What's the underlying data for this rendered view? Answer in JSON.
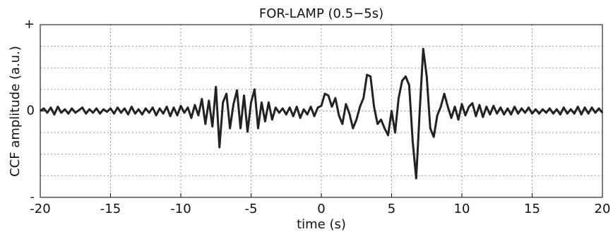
{
  "chart_data": {
    "type": "line",
    "title": "FOR-LAMP (0.5−5s)",
    "x_label": "time (s)",
    "y_label": "CCF amplitude (a.u.)",
    "color": "#222222",
    "grid": true,
    "xlim": [
      -20,
      20
    ],
    "xticks": [
      -20,
      -15,
      -10,
      -5,
      0,
      5,
      10,
      15,
      20
    ],
    "ylim": [
      -1,
      1
    ],
    "yticks": [
      {
        "value": -1,
        "label": "-"
      },
      0,
      {
        "value": 1,
        "label": "+"
      }
    ],
    "yminorticks": [
      -0.75,
      -0.5,
      -0.25,
      0.25,
      0.5,
      0.75
    ],
    "x": [
      -20,
      -19.75,
      -19.5,
      -19.25,
      -19,
      -18.75,
      -18.5,
      -18.25,
      -18,
      -17.75,
      -17.5,
      -17.25,
      -17,
      -16.75,
      -16.5,
      -16.25,
      -16,
      -15.75,
      -15.5,
      -15.25,
      -15,
      -14.75,
      -14.5,
      -14.25,
      -14,
      -13.75,
      -13.5,
      -13.25,
      -13,
      -12.75,
      -12.5,
      -12.25,
      -12,
      -11.75,
      -11.5,
      -11.25,
      -11,
      -10.75,
      -10.5,
      -10.25,
      -10,
      -9.75,
      -9.5,
      -9.25,
      -9,
      -8.75,
      -8.5,
      -8.25,
      -8,
      -7.75,
      -7.5,
      -7.25,
      -7,
      -6.75,
      -6.5,
      -6.25,
      -6,
      -5.75,
      -5.5,
      -5.25,
      -5,
      -4.75,
      -4.5,
      -4.25,
      -4,
      -3.75,
      -3.5,
      -3.25,
      -3,
      -2.75,
      -2.5,
      -2.25,
      -2,
      -1.75,
      -1.5,
      -1.25,
      -1,
      -0.75,
      -0.5,
      -0.25,
      0,
      0.25,
      0.5,
      0.75,
      1,
      1.25,
      1.5,
      1.75,
      2,
      2.25,
      2.5,
      2.75,
      3,
      3.25,
      3.5,
      3.75,
      4,
      4.25,
      4.5,
      4.75,
      5,
      5.25,
      5.5,
      5.75,
      6,
      6.25,
      6.5,
      6.75,
      7,
      7.25,
      7.5,
      7.75,
      8,
      8.25,
      8.5,
      8.75,
      9,
      9.25,
      9.5,
      9.75,
      10,
      10.25,
      10.5,
      10.75,
      11,
      11.25,
      11.5,
      11.75,
      12,
      12.25,
      12.5,
      12.75,
      13,
      13.25,
      13.5,
      13.75,
      14,
      14.25,
      14.5,
      14.75,
      15,
      15.25,
      15.5,
      15.75,
      16,
      16.25,
      16.5,
      16.75,
      17,
      17.25,
      17.5,
      17.75,
      18,
      18.25,
      18.5,
      18.75,
      19,
      19.25,
      19.5,
      19.75,
      20
    ],
    "values": [
      0,
      0.03,
      -0.02,
      0.04,
      -0.04,
      0.05,
      -0.02,
      0.02,
      -0.03,
      0.03,
      -0.02,
      0.01,
      0.04,
      -0.03,
      0.02,
      -0.02,
      0.03,
      -0.03,
      0.02,
      -0.01,
      0.03,
      -0.03,
      0.04,
      -0.02,
      0.03,
      -0.04,
      0.05,
      -0.03,
      0.02,
      -0.04,
      0.03,
      -0.02,
      0.04,
      -0.05,
      0.03,
      -0.03,
      0.05,
      -0.06,
      0.04,
      -0.05,
      0.06,
      -0.02,
      0.04,
      -0.08,
      0.07,
      -0.05,
      0.14,
      -0.15,
      0.12,
      -0.18,
      0.28,
      -0.42,
      0.1,
      0.2,
      -0.2,
      0.08,
      0.24,
      -0.2,
      0.18,
      -0.24,
      0.1,
      0.25,
      -0.2,
      0.1,
      -0.12,
      0.1,
      -0.1,
      0.04,
      -0.02,
      0.03,
      -0.04,
      0.04,
      -0.06,
      0.05,
      -0.08,
      0.02,
      -0.04,
      0.05,
      -0.06,
      0.04,
      0.06,
      0.2,
      0.18,
      0.05,
      0.15,
      -0.05,
      -0.15,
      0.08,
      -0.03,
      -0.2,
      -0.1,
      0.05,
      0.15,
      0.42,
      0.4,
      0.05,
      -0.15,
      -0.1,
      -0.2,
      -0.28,
      0,
      -0.25,
      0.15,
      0.35,
      0.4,
      0.3,
      -0.35,
      -0.78,
      0,
      0.72,
      0.4,
      -0.2,
      -0.3,
      -0.05,
      0.05,
      0.2,
      0.05,
      -0.08,
      0.05,
      -0.1,
      0.08,
      -0.05,
      0.05,
      0.09,
      -0.06,
      0.07,
      -0.07,
      0.05,
      -0.04,
      0.06,
      -0.03,
      0.04,
      -0.04,
      0.03,
      -0.04,
      0.05,
      -0.03,
      0.03,
      -0.02,
      0.04,
      -0.03,
      0.02,
      -0.03,
      0.02,
      -0.02,
      0.03,
      -0.03,
      0.02,
      -0.04,
      0.04,
      -0.03,
      0.02,
      -0.03,
      0.05,
      -0.04,
      0.04,
      -0.03,
      0.04,
      -0.02,
      0.03,
      -0.02
    ]
  }
}
